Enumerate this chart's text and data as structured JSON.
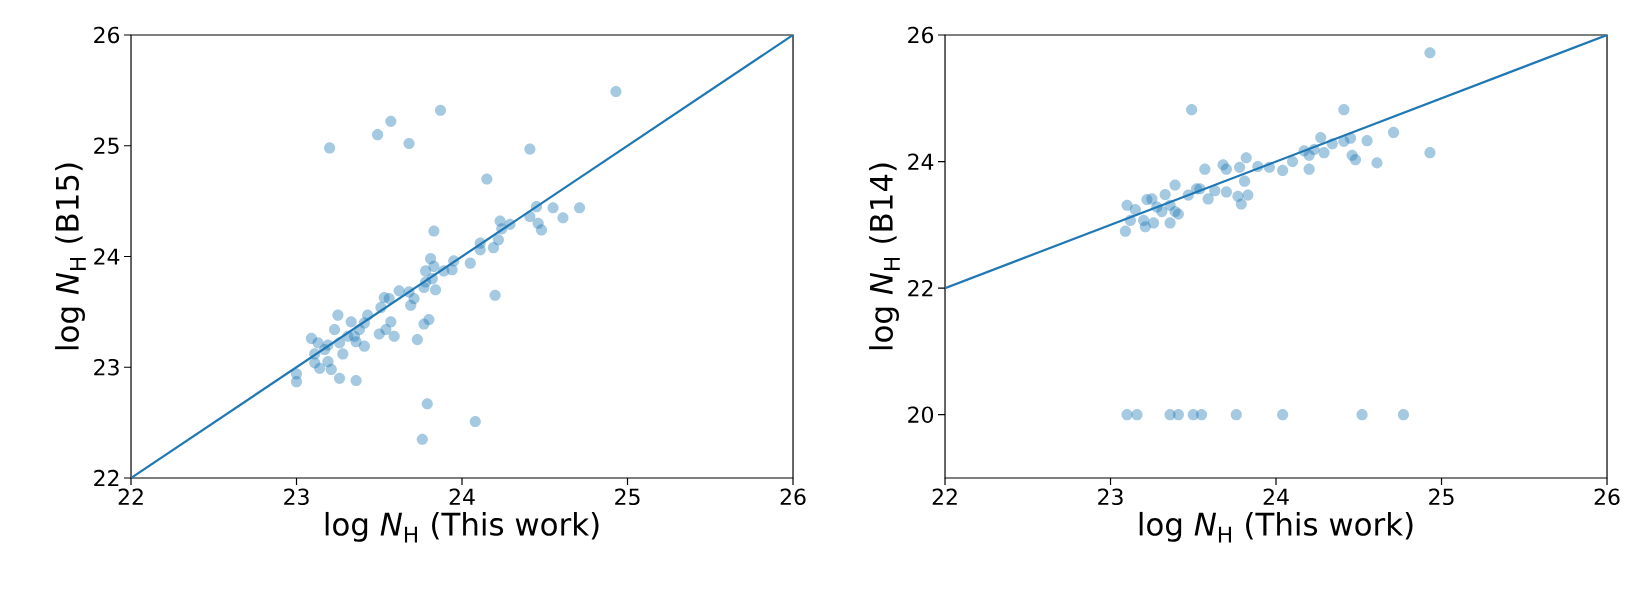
{
  "chart_data": [
    {
      "type": "scatter",
      "xlabel": "log *N*$_{H}$ (This work)",
      "ylabel": "log *N*$_{H}$ (B15)",
      "xlim": [
        22,
        26
      ],
      "ylim": [
        22,
        26
      ],
      "xticks": [
        22,
        23,
        24,
        25,
        26
      ],
      "yticks": [
        22,
        23,
        24,
        25,
        26
      ],
      "grid": false,
      "series": [
        {
          "marker": "circle",
          "color": "#1f77b4",
          "x": [
            23.2,
            23.49,
            23.57,
            23.68,
            23.87,
            24.93,
            24.41,
            24.15,
            23.83,
            24.2,
            23.79,
            24.08,
            23.76,
            23.36,
            23.26,
            23.0,
            23.0,
            24.45,
            24.55,
            24.61,
            24.71,
            24.41,
            24.46,
            24.48,
            24.23,
            24.29,
            24.24,
            24.22,
            24.19,
            24.11,
            24.11,
            24.05,
            23.95,
            23.94,
            23.89,
            23.81,
            23.83,
            23.78,
            23.82,
            23.78,
            23.77,
            23.84,
            23.62,
            23.68,
            23.71,
            23.69,
            23.56,
            23.53,
            23.51,
            23.43,
            23.57,
            23.54,
            23.59,
            23.5,
            23.77,
            23.8,
            23.73,
            23.41,
            23.33,
            23.25,
            23.23,
            23.38,
            23.35,
            23.36,
            23.41,
            23.31,
            23.26,
            23.28,
            23.19,
            23.13,
            23.09,
            23.11,
            23.11,
            23.14,
            23.21,
            23.19,
            23.17
          ],
          "values": [
            24.98,
            25.1,
            25.22,
            25.02,
            25.32,
            25.49,
            24.97,
            24.7,
            24.23,
            23.65,
            22.67,
            22.51,
            22.35,
            22.88,
            22.9,
            22.87,
            22.94,
            24.45,
            24.44,
            24.35,
            24.44,
            24.36,
            24.3,
            24.24,
            24.32,
            24.29,
            24.25,
            24.15,
            24.08,
            24.12,
            24.06,
            23.94,
            23.96,
            23.88,
            23.87,
            23.98,
            23.91,
            23.87,
            23.8,
            23.77,
            23.72,
            23.7,
            23.69,
            23.68,
            23.62,
            23.56,
            23.62,
            23.63,
            23.54,
            23.47,
            23.41,
            23.34,
            23.28,
            23.3,
            23.39,
            23.43,
            23.25,
            23.4,
            23.41,
            23.47,
            23.34,
            23.34,
            23.28,
            23.23,
            23.19,
            23.28,
            23.22,
            23.12,
            23.2,
            23.22,
            23.26,
            23.12,
            23.04,
            22.99,
            22.98,
            23.05,
            23.16
          ]
        },
        {
          "type": "line",
          "color": "#1f77b4",
          "line_style": "solid",
          "x": [
            22,
            26
          ],
          "values": [
            22,
            26
          ]
        }
      ]
    },
    {
      "type": "scatter",
      "xlabel": "log *N*$_{H}$ (This work)",
      "ylabel": "log *N*$_{H}$ (B14)",
      "xlim": [
        22,
        26
      ],
      "ylim": [
        19,
        26
      ],
      "xticks": [
        22,
        23,
        24,
        25,
        26
      ],
      "yticks": [
        20,
        22,
        24,
        26
      ],
      "grid": false,
      "series": [
        {
          "marker": "circle",
          "color": "#1f77b4",
          "x": [
            23.1,
            23.16,
            23.36,
            23.41,
            23.5,
            23.55,
            23.76,
            24.04,
            24.52,
            24.77,
            24.93,
            23.49,
            24.41,
            24.93,
            24.71,
            24.61,
            24.55,
            24.46,
            24.48,
            24.2,
            24.04,
            24.1,
            23.96,
            23.89,
            23.82,
            23.78,
            23.81,
            23.83,
            23.79,
            23.77,
            23.7,
            23.7,
            23.68,
            23.57,
            23.59,
            23.54,
            23.52,
            23.47,
            23.39,
            23.33,
            23.25,
            23.22,
            23.1,
            23.15,
            23.28,
            23.36,
            23.39,
            23.41,
            23.36,
            23.21,
            23.12,
            23.09,
            23.2,
            23.26,
            23.31,
            24.17,
            24.23,
            24.27,
            24.29,
            24.34,
            24.41,
            24.45,
            24.2,
            23.63
          ],
          "values": [
            20,
            20,
            20,
            20,
            20,
            20,
            20,
            20,
            20,
            20,
            25.72,
            24.82,
            24.82,
            24.14,
            24.46,
            23.98,
            24.33,
            24.1,
            24.03,
            23.88,
            23.86,
            24.0,
            23.91,
            23.92,
            24.06,
            23.91,
            23.69,
            23.47,
            23.33,
            23.45,
            23.52,
            23.88,
            23.95,
            23.88,
            23.41,
            23.57,
            23.57,
            23.47,
            23.63,
            23.48,
            23.41,
            23.4,
            23.31,
            23.24,
            23.28,
            23.31,
            23.21,
            23.17,
            23.03,
            22.97,
            23.07,
            22.9,
            23.07,
            23.03,
            23.21,
            24.17,
            24.19,
            24.38,
            24.14,
            24.28,
            24.32,
            24.37,
            24.1,
            23.54
          ]
        },
        {
          "type": "line",
          "color": "#1f77b4",
          "line_style": "solid",
          "x": [
            22,
            26
          ],
          "values": [
            22,
            26
          ]
        }
      ]
    }
  ]
}
